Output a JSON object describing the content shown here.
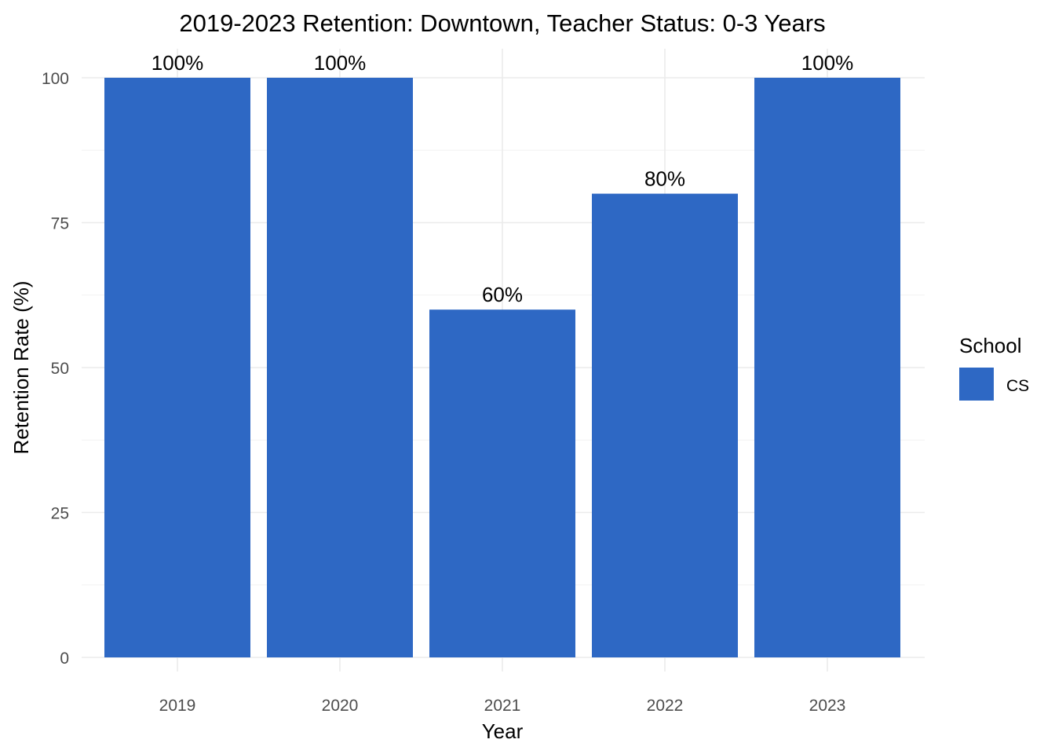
{
  "chart_data": {
    "type": "bar",
    "title": "2019-2023 Retention: Downtown, Teacher Status: 0-3 Years",
    "xlabel": "Year",
    "ylabel": "Retention Rate (%)",
    "categories": [
      "2019",
      "2020",
      "2021",
      "2022",
      "2023"
    ],
    "series": [
      {
        "name": "CS",
        "values": [
          100,
          100,
          60,
          80,
          100
        ],
        "labels": [
          "100%",
          "100%",
          "60%",
          "80%",
          "100%"
        ],
        "color": "#2e68c4"
      }
    ],
    "yticks": [
      0,
      25,
      50,
      75,
      100
    ],
    "ylim": [
      0,
      100
    ],
    "grid": true,
    "legend": {
      "title": "School",
      "placement": "right"
    }
  }
}
